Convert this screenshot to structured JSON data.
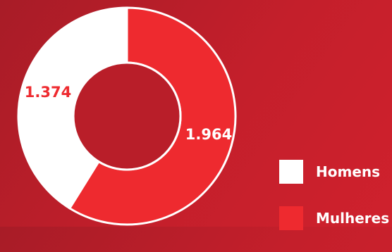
{
  "colors": {
    "homens": "#ffffff",
    "mulheres": "#ee2a2f",
    "background": "#c41f2b",
    "white_label": "#ee2a2f"
  },
  "chart_data": {
    "type": "pie",
    "title": "",
    "categories": [
      "Homens",
      "Mulheres"
    ],
    "values": [
      1374,
      1964
    ],
    "value_labels": [
      "1.374",
      "1.964"
    ],
    "donut": true,
    "legend_position": "bottom-right"
  },
  "legend": {
    "items": [
      {
        "label": "Homens"
      },
      {
        "label": "Mulheres"
      }
    ]
  }
}
